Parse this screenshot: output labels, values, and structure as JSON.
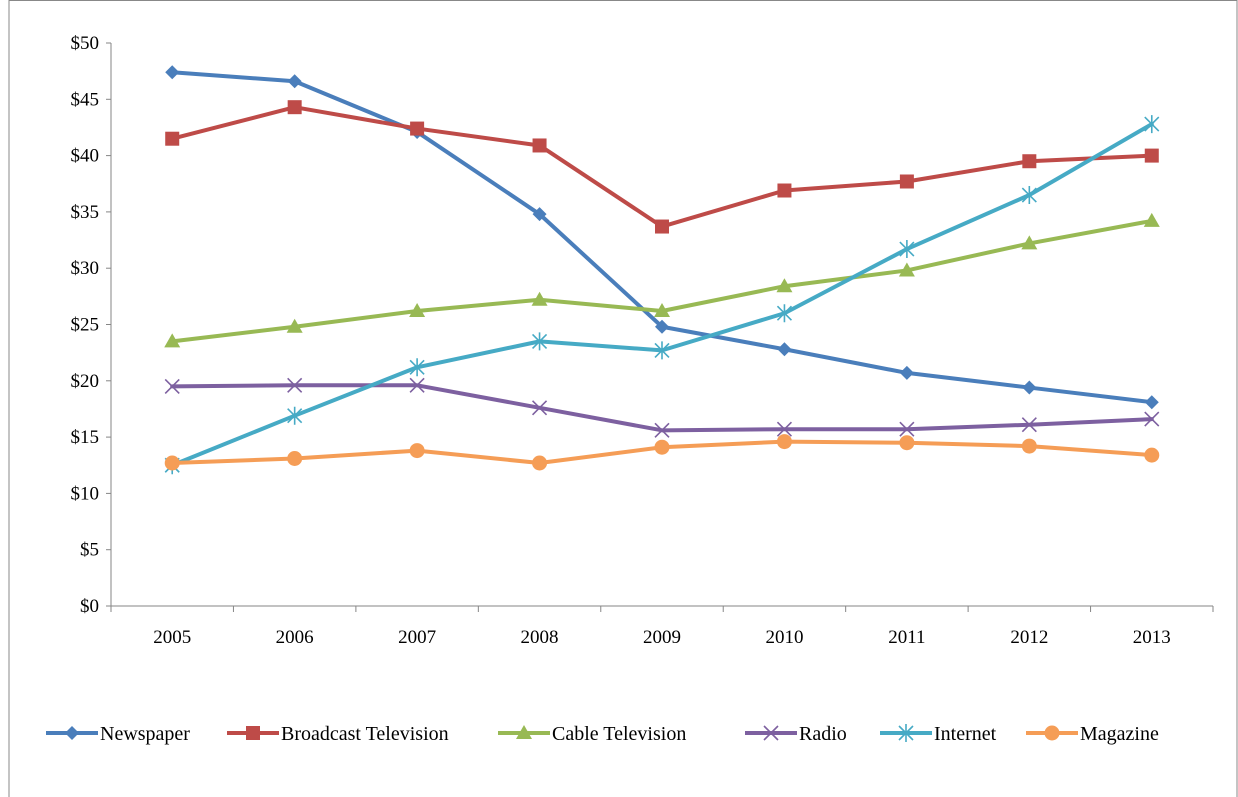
{
  "chart_data": {
    "type": "line",
    "title": "",
    "xlabel": "",
    "ylabel": "",
    "categories": [
      "2005",
      "2006",
      "2007",
      "2008",
      "2009",
      "2010",
      "2011",
      "2012",
      "2013"
    ],
    "ylim": [
      0,
      50
    ],
    "yticks": [
      0,
      5,
      10,
      15,
      20,
      25,
      30,
      35,
      40,
      45,
      50
    ],
    "ytick_labels": [
      "$0",
      "$5",
      "$10",
      "$15",
      "$20",
      "$25",
      "$30",
      "$35",
      "$40",
      "$45",
      "$50"
    ],
    "grid": false,
    "legend": "bottom",
    "series": [
      {
        "name": "Newspaper",
        "color": "#4a7ebb",
        "marker": "diamond",
        "values": [
          47.4,
          46.6,
          42.1,
          34.8,
          24.8,
          22.8,
          20.7,
          19.4,
          18.1
        ]
      },
      {
        "name": "Broadcast Television",
        "color": "#be4b48",
        "marker": "square",
        "values": [
          41.5,
          44.3,
          42.4,
          40.9,
          33.7,
          36.9,
          37.7,
          39.5,
          40.0
        ]
      },
      {
        "name": "Cable Television",
        "color": "#98b954",
        "marker": "triangle",
        "values": [
          23.5,
          24.8,
          26.2,
          27.2,
          26.2,
          28.4,
          29.8,
          32.2,
          34.2
        ]
      },
      {
        "name": "Radio",
        "color": "#7d60a0",
        "marker": "x",
        "values": [
          19.5,
          19.6,
          19.6,
          17.6,
          15.6,
          15.7,
          15.7,
          16.1,
          16.6
        ]
      },
      {
        "name": "Internet",
        "color": "#46aac5",
        "marker": "star",
        "values": [
          12.5,
          16.9,
          21.2,
          23.5,
          22.7,
          26.0,
          31.7,
          36.5,
          42.8
        ]
      },
      {
        "name": "Magazine",
        "color": "#f59d56",
        "marker": "circle",
        "values": [
          12.7,
          13.1,
          13.8,
          12.7,
          14.1,
          14.6,
          14.5,
          14.2,
          13.4
        ]
      }
    ]
  }
}
